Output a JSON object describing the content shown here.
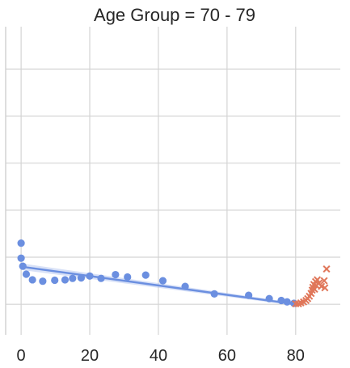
{
  "chart_data": {
    "type": "scatter",
    "title": "Age Group = 70 - 79",
    "xlabel": "",
    "ylabel": "",
    "xlim": [
      -4.5,
      93
    ],
    "ylim": [
      -0.65,
      5.9
    ],
    "x_ticks": [
      0,
      20,
      40,
      60,
      80
    ],
    "x_tick_labels": [
      "0",
      "20",
      "40",
      "60",
      "80"
    ],
    "y_gridlines": [
      0,
      1,
      2,
      3,
      4,
      5
    ],
    "y_tick_labels": [],
    "grid": true,
    "colors": {
      "blue": "#6b8fe0",
      "orange": "#e0775a",
      "band": "#b8c8f0"
    },
    "series": [
      {
        "marker": "circle",
        "color": "#6b8fe0",
        "points": [
          [
            0,
            1.3
          ],
          [
            0,
            0.98
          ],
          [
            0.5,
            0.81
          ],
          [
            1.5,
            0.64
          ],
          [
            3.3,
            0.52
          ],
          [
            6.3,
            0.49
          ],
          [
            9.8,
            0.51
          ],
          [
            12.8,
            0.52
          ],
          [
            15,
            0.55
          ],
          [
            17.5,
            0.56
          ],
          [
            20,
            0.6
          ],
          [
            23.3,
            0.55
          ],
          [
            27.5,
            0.63
          ],
          [
            31,
            0.58
          ],
          [
            36.3,
            0.62
          ],
          [
            41.3,
            0.5
          ],
          [
            47.8,
            0.38
          ],
          [
            56.3,
            0.22
          ],
          [
            66.3,
            0.19
          ],
          [
            72.3,
            0.12
          ],
          [
            75.8,
            0.08
          ],
          [
            77.5,
            0.05
          ],
          [
            79.5,
            0.02
          ]
        ],
        "trend": {
          "x": [
            0,
            80
          ],
          "y": [
            0.8,
            0.0
          ],
          "band_start": 0.07,
          "band_end": 0.03
        }
      },
      {
        "marker": "x",
        "color": "#e0775a",
        "points": [
          [
            80,
            0.01
          ],
          [
            80.8,
            0.01
          ],
          [
            81.5,
            0.03
          ],
          [
            82.3,
            0.05
          ],
          [
            83,
            0.08
          ],
          [
            83.5,
            0.12
          ],
          [
            84,
            0.17
          ],
          [
            84.5,
            0.23
          ],
          [
            84.8,
            0.3
          ],
          [
            85,
            0.36
          ],
          [
            85.3,
            0.42
          ],
          [
            85.8,
            0.48
          ],
          [
            86.3,
            0.52
          ],
          [
            86.8,
            0.45
          ],
          [
            87.5,
            0.38
          ],
          [
            88.3,
            0.5
          ],
          [
            88.5,
            0.35
          ],
          [
            89,
            0.75
          ],
          [
            85.5,
            0.32
          ],
          [
            86,
            0.4
          ]
        ]
      }
    ]
  }
}
